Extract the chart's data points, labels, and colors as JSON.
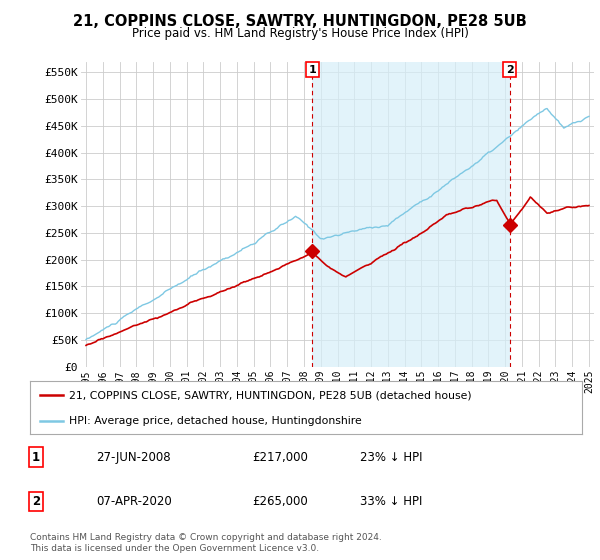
{
  "title": "21, COPPINS CLOSE, SAWTRY, HUNTINGDON, PE28 5UB",
  "subtitle": "Price paid vs. HM Land Registry's House Price Index (HPI)",
  "ylabel_ticks": [
    "£0",
    "£50K",
    "£100K",
    "£150K",
    "£200K",
    "£250K",
    "£300K",
    "£350K",
    "£400K",
    "£450K",
    "£500K",
    "£550K"
  ],
  "ytick_vals": [
    0,
    50000,
    100000,
    150000,
    200000,
    250000,
    300000,
    350000,
    400000,
    450000,
    500000,
    550000
  ],
  "ylim": [
    0,
    570000
  ],
  "hpi_color": "#7ec8e3",
  "hpi_fill_color": "#d6eef8",
  "sale_color": "#cc0000",
  "marker1_date": 2008.49,
  "marker2_date": 2020.27,
  "marker1_val": 217000,
  "marker2_val": 265000,
  "legend_label1": "21, COPPINS CLOSE, SAWTRY, HUNTINGDON, PE28 5UB (detached house)",
  "legend_label2": "HPI: Average price, detached house, Huntingdonshire",
  "annotation1": [
    "1",
    "27-JUN-2008",
    "£217,000",
    "23% ↓ HPI"
  ],
  "annotation2": [
    "2",
    "07-APR-2020",
    "£265,000",
    "33% ↓ HPI"
  ],
  "footer": "Contains HM Land Registry data © Crown copyright and database right 2024.\nThis data is licensed under the Open Government Licence v3.0.",
  "background_color": "#ffffff",
  "grid_color": "#cccccc",
  "x_start": 1995,
  "x_end": 2025,
  "xticks": [
    1995,
    1996,
    1997,
    1998,
    1999,
    2000,
    2001,
    2002,
    2003,
    2004,
    2005,
    2006,
    2007,
    2008,
    2009,
    2010,
    2011,
    2012,
    2013,
    2014,
    2015,
    2016,
    2017,
    2018,
    2019,
    2020,
    2021,
    2022,
    2023,
    2024,
    2025
  ]
}
